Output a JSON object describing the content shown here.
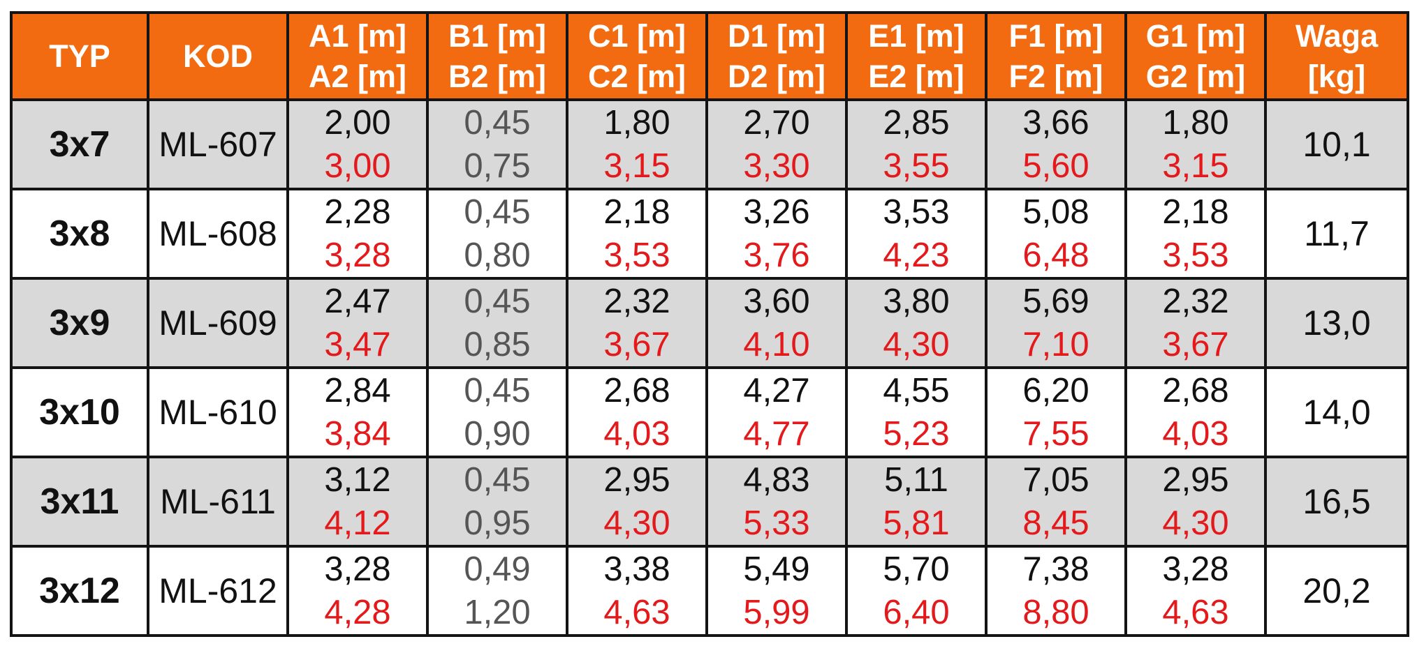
{
  "headers": [
    {
      "line1": "TYP",
      "line2": ""
    },
    {
      "line1": "KOD",
      "line2": ""
    },
    {
      "line1": "A1 [m]",
      "line2": "A2 [m]"
    },
    {
      "line1": "B1 [m]",
      "line2": "B2 [m]"
    },
    {
      "line1": "C1 [m]",
      "line2": "C2 [m]"
    },
    {
      "line1": "D1 [m]",
      "line2": "D2 [m]"
    },
    {
      "line1": "E1 [m]",
      "line2": "E2 [m]"
    },
    {
      "line1": "F1 [m]",
      "line2": "F2 [m]"
    },
    {
      "line1": "G1 [m]",
      "line2": "G2 [m]"
    },
    {
      "line1": "Waga",
      "line2": "[kg]"
    }
  ],
  "rows": [
    {
      "typ": "3x7",
      "kod": "ML-607",
      "a": [
        "2,00",
        "3,00"
      ],
      "b": [
        "0,45",
        "0,75"
      ],
      "c": [
        "1,80",
        "3,15"
      ],
      "d": [
        "2,70",
        "3,30"
      ],
      "e": [
        "2,85",
        "3,55"
      ],
      "f": [
        "3,66",
        "5,60"
      ],
      "g": [
        "1,80",
        "3,15"
      ],
      "waga": "10,1"
    },
    {
      "typ": "3x8",
      "kod": "ML-608",
      "a": [
        "2,28",
        "3,28"
      ],
      "b": [
        "0,45",
        "0,80"
      ],
      "c": [
        "2,18",
        "3,53"
      ],
      "d": [
        "3,26",
        "3,76"
      ],
      "e": [
        "3,53",
        "4,23"
      ],
      "f": [
        "5,08",
        "6,48"
      ],
      "g": [
        "2,18",
        "3,53"
      ],
      "waga": "11,7"
    },
    {
      "typ": "3x9",
      "kod": "ML-609",
      "a": [
        "2,47",
        "3,47"
      ],
      "b": [
        "0,45",
        "0,85"
      ],
      "c": [
        "2,32",
        "3,67"
      ],
      "d": [
        "3,60",
        "4,10"
      ],
      "e": [
        "3,80",
        "4,30"
      ],
      "f": [
        "5,69",
        "7,10"
      ],
      "g": [
        "2,32",
        "3,67"
      ],
      "waga": "13,0"
    },
    {
      "typ": "3x10",
      "kod": "ML-610",
      "a": [
        "2,84",
        "3,84"
      ],
      "b": [
        "0,45",
        "0,90"
      ],
      "c": [
        "2,68",
        "4,03"
      ],
      "d": [
        "4,27",
        "4,77"
      ],
      "e": [
        "4,55",
        "5,23"
      ],
      "f": [
        "6,20",
        "7,55"
      ],
      "g": [
        "2,68",
        "4,03"
      ],
      "waga": "14,0"
    },
    {
      "typ": "3x11",
      "kod": "ML-611",
      "a": [
        "3,12",
        "4,12"
      ],
      "b": [
        "0,45",
        "0,95"
      ],
      "c": [
        "2,95",
        "4,30"
      ],
      "d": [
        "4,83",
        "5,33"
      ],
      "e": [
        "5,11",
        "5,81"
      ],
      "f": [
        "7,05",
        "8,45"
      ],
      "g": [
        "2,95",
        "4,30"
      ],
      "waga": "16,5"
    },
    {
      "typ": "3x12",
      "kod": "ML-612",
      "a": [
        "3,28",
        "4,28"
      ],
      "b": [
        "0,49",
        "1,20"
      ],
      "c": [
        "3,38",
        "4,63"
      ],
      "d": [
        "5,49",
        "5,99"
      ],
      "e": [
        "5,70",
        "6,40"
      ],
      "f": [
        "7,38",
        "8,80"
      ],
      "g": [
        "3,28",
        "4,63"
      ],
      "waga": "20,2"
    }
  ],
  "colors": {
    "header_bg": "#f26b10",
    "header_text": "#ffffff",
    "row_shade": "#d9d9d9",
    "value_primary": "#111111",
    "value_secondary": "#e3191b",
    "value_muted": "#555555",
    "border": "#141414"
  }
}
